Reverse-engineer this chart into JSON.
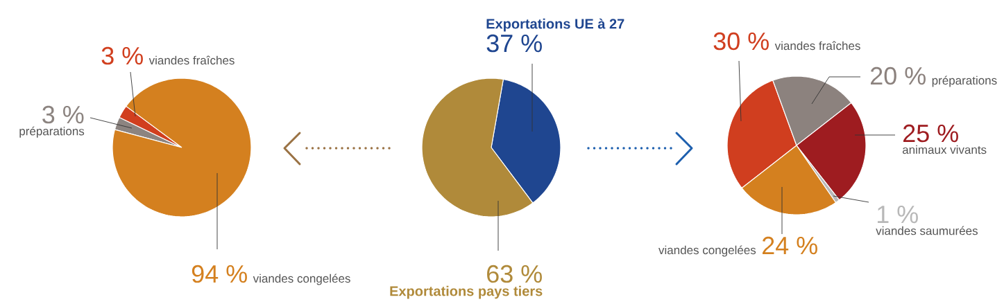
{
  "chart_data": [
    {
      "type": "pie",
      "categories": [
        "préparations",
        "viandes fraîches",
        "viandes congelées"
      ],
      "values": [
        3,
        3,
        94
      ],
      "colors": [
        "#8c8480",
        "#d13f1e",
        "#d4801f"
      ],
      "value_labels": [
        "3 %",
        "3 %",
        "94 %"
      ]
    },
    {
      "type": "pie",
      "categories": [
        "Exportations UE à 27",
        "Exportations pays tiers"
      ],
      "values": [
        37,
        63
      ],
      "colors": [
        "#1f4690",
        "#b08a3a"
      ],
      "value_labels": [
        "37 %",
        "63 %"
      ]
    },
    {
      "type": "pie",
      "categories": [
        "viandes fraîches",
        "préparations",
        "animaux vivants",
        "viandes saumurées",
        "viandes congelées"
      ],
      "values": [
        30,
        20,
        25,
        1,
        24
      ],
      "colors": [
        "#d03e1f",
        "#8c827e",
        "#9e1c20",
        "#b8b8b8",
        "#d4801f"
      ],
      "value_labels": [
        "30 %",
        "20 %",
        "25 %",
        "1 %",
        "24 %"
      ]
    }
  ]
}
